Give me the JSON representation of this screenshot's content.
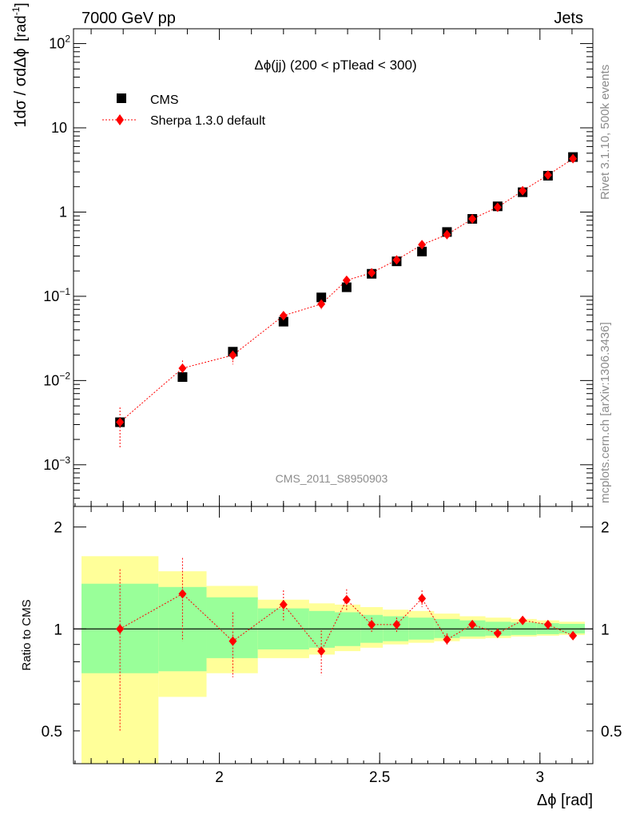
{
  "header": {
    "energy_label": "7000 GeV pp",
    "process_label": "Jets"
  },
  "side": {
    "rivet_label": "Rivet 3.1.10,  500k events",
    "source_label": "mcplots.cern.ch [arXiv:1306.3436]"
  },
  "colors": {
    "cms": "#000000",
    "sherpa": "#ff0000",
    "band_inner": "#99ff99",
    "band_outer": "#ffff99",
    "watermark": "#8c8c8c"
  },
  "chart_data": [
    {
      "type": "scatter",
      "title": "Δϕ(jj) (200 < pTlead <  300)",
      "ylabel_fraction": "1dσ / σdΔϕ",
      "ylabel_unit": "[rad",
      "ylabel_unit_sup": "-1",
      "ylabel_unit_close": "]",
      "yscale": "log",
      "xlim": [
        1.545,
        3.165
      ],
      "ylim": [
        0.00032,
        150
      ],
      "yticks": [
        {
          "value": 0.001,
          "base": "10",
          "exp": "−3"
        },
        {
          "value": 0.01,
          "base": "10",
          "exp": "−2"
        },
        {
          "value": 0.1,
          "base": "10",
          "exp": "−1"
        },
        {
          "value": 1,
          "label": "1"
        },
        {
          "value": 10,
          "label": "10"
        },
        {
          "value": 100,
          "base": "10",
          "exp": "2"
        }
      ],
      "watermark": "CMS_2011_S8950903",
      "legend": [
        {
          "name": "CMS",
          "marker": "square"
        },
        {
          "name": "Sherpa 1.3.0 default",
          "marker": "diamond"
        }
      ],
      "series": [
        {
          "name": "CMS",
          "x": [
            1.69,
            1.885,
            2.042,
            2.2,
            2.318,
            2.397,
            2.475,
            2.553,
            2.632,
            2.71,
            2.789,
            2.868,
            2.946,
            3.025,
            3.103
          ],
          "y": [
            0.0032,
            0.011,
            0.022,
            0.05,
            0.097,
            0.128,
            0.185,
            0.26,
            0.34,
            0.58,
            0.83,
            1.17,
            1.72,
            2.7,
            4.5
          ]
        },
        {
          "name": "Sherpa 1.3.0 default",
          "x": [
            1.69,
            1.885,
            2.042,
            2.2,
            2.318,
            2.397,
            2.475,
            2.553,
            2.632,
            2.71,
            2.789,
            2.868,
            2.946,
            3.025,
            3.103
          ],
          "y": [
            0.0032,
            0.014,
            0.02,
            0.059,
            0.081,
            0.155,
            0.19,
            0.27,
            0.41,
            0.54,
            0.83,
            1.14,
            1.79,
            2.75,
            4.3
          ],
          "err_low": [
            0.0016,
            0.0033,
            0.0045,
            0.007,
            0.011,
            0.01,
            0.009,
            0.013,
            0.025,
            0.02,
            0.025,
            0.04,
            0.04,
            0.06,
            0.08
          ],
          "err_high": [
            0.0016,
            0.0033,
            0.0045,
            0.007,
            0.011,
            0.01,
            0.009,
            0.013,
            0.025,
            0.02,
            0.025,
            0.04,
            0.04,
            0.06,
            0.08
          ]
        }
      ]
    },
    {
      "type": "scatter",
      "ylabel": "Ratio to CMS",
      "xlabel": "Δϕ [rad]",
      "yscale": "log",
      "xlim": [
        1.545,
        3.165
      ],
      "ylim": [
        0.4,
        2.3
      ],
      "xticks": [
        {
          "value": 2,
          "label": "2"
        },
        {
          "value": 2.5,
          "label": "2.5"
        },
        {
          "value": 3,
          "label": "3"
        }
      ],
      "yticks": [
        {
          "value": 0.5,
          "label": "0.5"
        },
        {
          "value": 1,
          "label": "1"
        },
        {
          "value": 2,
          "label": "2"
        }
      ],
      "bands": {
        "x_edges": [
          1.57,
          1.81,
          1.96,
          2.12,
          2.28,
          2.36,
          2.44,
          2.51,
          2.59,
          2.67,
          2.75,
          2.83,
          2.91,
          2.99,
          3.06,
          3.14
        ],
        "inner_low": [
          0.74,
          0.75,
          0.82,
          0.87,
          0.88,
          0.89,
          0.91,
          0.92,
          0.93,
          0.94,
          0.95,
          0.955,
          0.96,
          0.965,
          0.97
        ],
        "inner_high": [
          1.36,
          1.33,
          1.24,
          1.15,
          1.13,
          1.12,
          1.1,
          1.09,
          1.08,
          1.07,
          1.06,
          1.05,
          1.045,
          1.04,
          1.035
        ],
        "outer_low": [
          0.35,
          0.63,
          0.74,
          0.82,
          0.84,
          0.86,
          0.88,
          0.9,
          0.91,
          0.92,
          0.935,
          0.94,
          0.95,
          0.955,
          0.96
        ],
        "outer_high": [
          1.64,
          1.48,
          1.34,
          1.22,
          1.19,
          1.18,
          1.16,
          1.14,
          1.13,
          1.11,
          1.09,
          1.08,
          1.07,
          1.06,
          1.05
        ]
      },
      "series": [
        {
          "name": "Sherpa 1.3.0 default",
          "x": [
            1.69,
            1.885,
            2.042,
            2.2,
            2.318,
            2.397,
            2.475,
            2.553,
            2.632,
            2.71,
            2.789,
            2.868,
            2.946,
            3.025,
            3.103
          ],
          "y": [
            1.0,
            1.27,
            0.92,
            1.18,
            0.86,
            1.22,
            1.03,
            1.03,
            1.23,
            0.93,
            1.03,
            0.97,
            1.06,
            1.03,
            0.955
          ],
          "err_low": [
            0.5,
            0.35,
            0.2,
            0.12,
            0.13,
            0.09,
            0.05,
            0.05,
            0.07,
            0.04,
            0.03,
            0.03,
            0.025,
            0.02,
            0.02
          ],
          "err_high": [
            0.5,
            0.35,
            0.2,
            0.12,
            0.13,
            0.09,
            0.05,
            0.05,
            0.07,
            0.04,
            0.03,
            0.03,
            0.025,
            0.02,
            0.02
          ]
        }
      ]
    }
  ]
}
